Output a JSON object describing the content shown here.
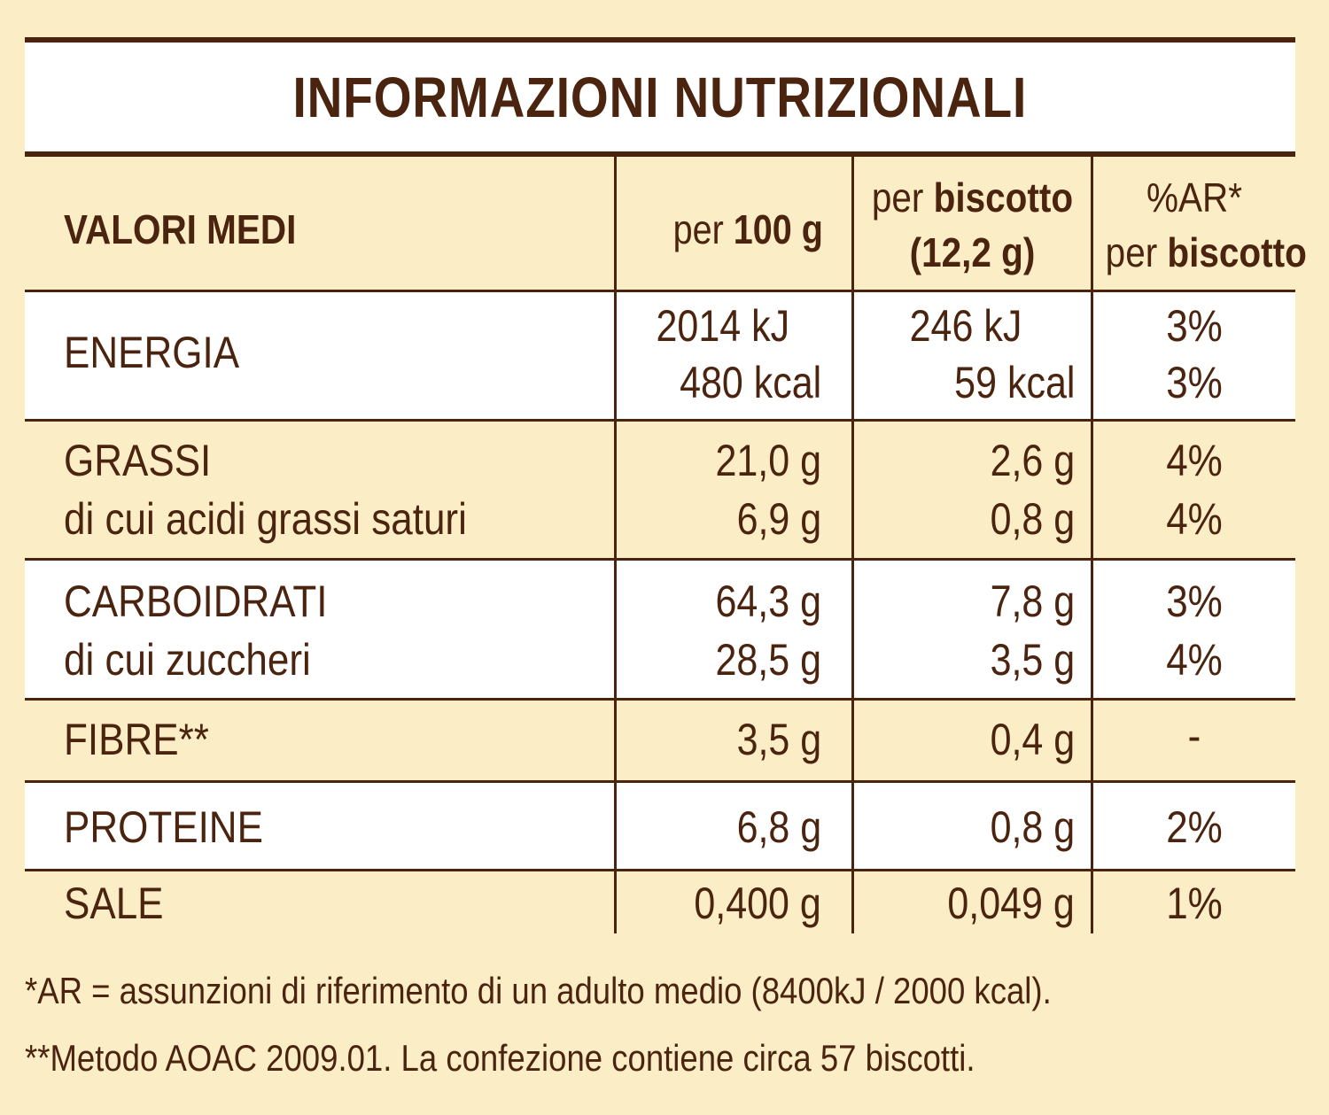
{
  "title": "INFORMAZIONI NUTRIZIONALI",
  "header": {
    "col0": "VALORI MEDI",
    "col1_prefix": "per ",
    "col1_bold": "100 g",
    "col2_prefix": "per ",
    "col2_bold": "biscotto",
    "col2_line2": "(12,2 g)",
    "col3_line1": "%AR*",
    "col3_prefix": "per ",
    "col3_bold": "biscotto"
  },
  "rows": [
    {
      "label": [
        "ENERGIA"
      ],
      "per100": [
        "2014 kJ",
        "480 kcal"
      ],
      "perBiscotto": [
        "246 kJ",
        "59 kcal"
      ],
      "ar": [
        "3%",
        "3%"
      ]
    },
    {
      "label": [
        "GRASSI",
        "di cui acidi grassi saturi"
      ],
      "per100": [
        "21,0 g",
        "6,9 g"
      ],
      "perBiscotto": [
        "2,6 g",
        "0,8 g"
      ],
      "ar": [
        "4%",
        "4%"
      ]
    },
    {
      "label": [
        "CARBOIDRATI",
        "di cui zuccheri"
      ],
      "per100": [
        "64,3 g",
        "28,5 g"
      ],
      "perBiscotto": [
        "7,8 g",
        "3,5 g"
      ],
      "ar": [
        "3%",
        "4%"
      ]
    },
    {
      "label": [
        "FIBRE**"
      ],
      "per100": [
        "3,5 g"
      ],
      "perBiscotto": [
        "0,4 g"
      ],
      "ar": [
        "-"
      ]
    },
    {
      "label": [
        "PROTEINE"
      ],
      "per100": [
        "6,8 g"
      ],
      "perBiscotto": [
        "0,8 g"
      ],
      "ar": [
        "2%"
      ]
    },
    {
      "label": [
        "SALE"
      ],
      "per100": [
        "0,400 g"
      ],
      "perBiscotto": [
        "0,049 g"
      ],
      "ar": [
        "1%"
      ]
    }
  ],
  "footnotes": [
    "*AR = assunzioni di riferimento di un adulto medio (8400kJ / 2000 kcal).",
    "**Metodo AOAC 2009.01. La confezione contiene circa 57 biscotti."
  ],
  "colors": {
    "brown": "#4b2410",
    "cream": "#fbedc6",
    "white": "#ffffff"
  }
}
